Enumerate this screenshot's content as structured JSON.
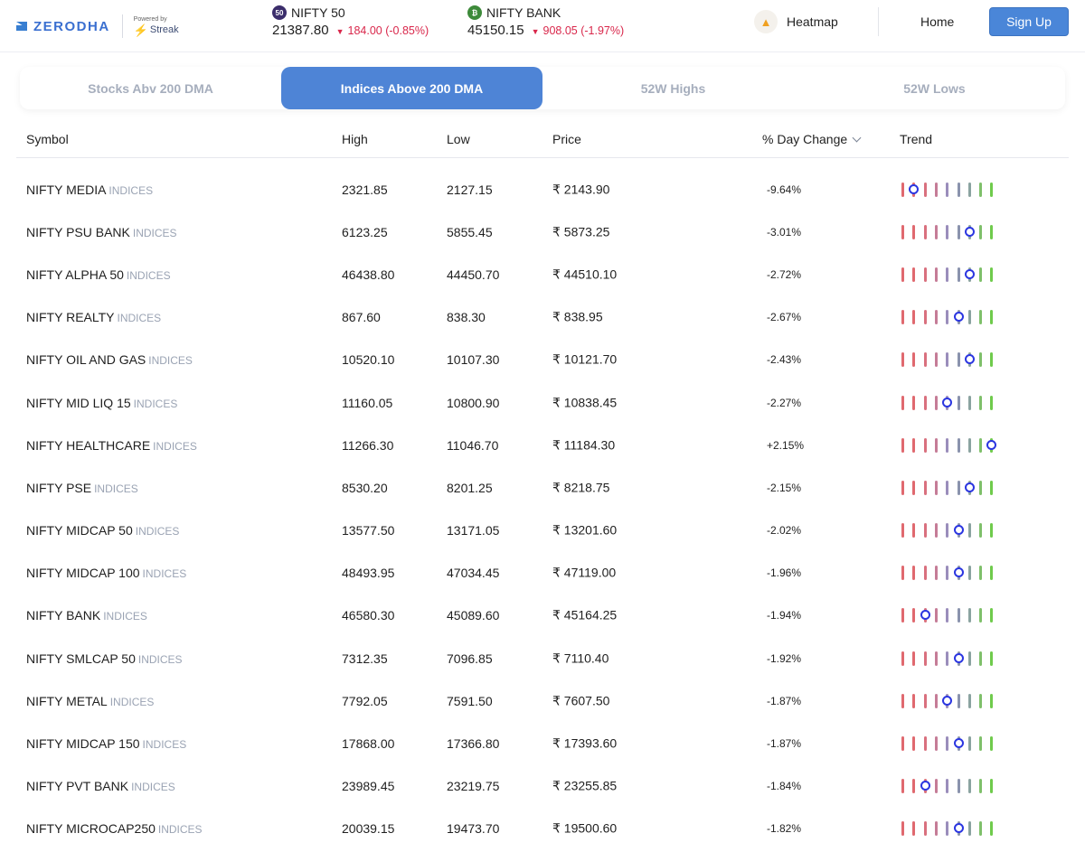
{
  "header": {
    "brand": "ZERODHA",
    "powered_by": "Powered by",
    "streak": "Streak",
    "tickers": [
      {
        "badge": "50",
        "name": "NIFTY 50",
        "value": "21387.80",
        "change": "184.00 (-0.85%)",
        "direction": "down",
        "badge_color": "#3b2d6b"
      },
      {
        "badge": "₿",
        "name": "NIFTY BANK",
        "value": "45150.15",
        "change": "908.05 (-1.97%)",
        "direction": "down",
        "badge_color": "#3d8a3a"
      }
    ],
    "heatmap": "Heatmap",
    "heatmap_icon": "flame-icon",
    "home": "Home",
    "signup": "Sign Up"
  },
  "tabs": [
    {
      "label": "Stocks Abv 200 DMA",
      "active": false
    },
    {
      "label": "Indices Above 200 DMA",
      "active": true
    },
    {
      "label": "52W Highs",
      "active": false
    },
    {
      "label": "52W Lows",
      "active": false
    }
  ],
  "table": {
    "columns": {
      "symbol": "Symbol",
      "high": "High",
      "low": "Low",
      "price": "Price",
      "change": "% Day Change",
      "trend": "Trend"
    },
    "rows": [
      {
        "symbol": "NIFTY MEDIA",
        "tag": "INDICES",
        "high": "2321.85",
        "low": "2127.15",
        "price": "₹ 2143.90",
        "change": "-9.64%",
        "trend_pos": 1
      },
      {
        "symbol": "NIFTY PSU BANK",
        "tag": "INDICES",
        "high": "6123.25",
        "low": "5855.45",
        "price": "₹ 5873.25",
        "change": "-3.01%",
        "trend_pos": 6
      },
      {
        "symbol": "NIFTY ALPHA 50",
        "tag": "INDICES",
        "high": "46438.80",
        "low": "44450.70",
        "price": "₹ 44510.10",
        "change": "-2.72%",
        "trend_pos": 6
      },
      {
        "symbol": "NIFTY REALTY",
        "tag": "INDICES",
        "high": "867.60",
        "low": "838.30",
        "price": "₹ 838.95",
        "change": "-2.67%",
        "trend_pos": 5
      },
      {
        "symbol": "NIFTY OIL AND GAS",
        "tag": "INDICES",
        "high": "10520.10",
        "low": "10107.30",
        "price": "₹ 10121.70",
        "change": "-2.43%",
        "trend_pos": 6
      },
      {
        "symbol": "NIFTY MID LIQ 15",
        "tag": "INDICES",
        "high": "11160.05",
        "low": "10800.90",
        "price": "₹ 10838.45",
        "change": "-2.27%",
        "trend_pos": 4
      },
      {
        "symbol": "NIFTY HEALTHCARE",
        "tag": "INDICES",
        "high": "11266.30",
        "low": "11046.70",
        "price": "₹ 11184.30",
        "change": "+2.15%",
        "trend_pos": 8
      },
      {
        "symbol": "NIFTY PSE",
        "tag": "INDICES",
        "high": "8530.20",
        "low": "8201.25",
        "price": "₹ 8218.75",
        "change": "-2.15%",
        "trend_pos": 6
      },
      {
        "symbol": "NIFTY MIDCAP 50",
        "tag": "INDICES",
        "high": "13577.50",
        "low": "13171.05",
        "price": "₹ 13201.60",
        "change": "-2.02%",
        "trend_pos": 5
      },
      {
        "symbol": "NIFTY MIDCAP 100",
        "tag": "INDICES",
        "high": "48493.95",
        "low": "47034.45",
        "price": "₹ 47119.00",
        "change": "-1.96%",
        "trend_pos": 5
      },
      {
        "symbol": "NIFTY BANK",
        "tag": "INDICES",
        "high": "46580.30",
        "low": "45089.60",
        "price": "₹ 45164.25",
        "change": "-1.94%",
        "trend_pos": 2
      },
      {
        "symbol": "NIFTY SMLCAP 50",
        "tag": "INDICES",
        "high": "7312.35",
        "low": "7096.85",
        "price": "₹ 7110.40",
        "change": "-1.92%",
        "trend_pos": 5
      },
      {
        "symbol": "NIFTY METAL",
        "tag": "INDICES",
        "high": "7792.05",
        "low": "7591.50",
        "price": "₹ 7607.50",
        "change": "-1.87%",
        "trend_pos": 4
      },
      {
        "symbol": "NIFTY MIDCAP 150",
        "tag": "INDICES",
        "high": "17868.00",
        "low": "17366.80",
        "price": "₹ 17393.60",
        "change": "-1.87%",
        "trend_pos": 5
      },
      {
        "symbol": "NIFTY PVT BANK",
        "tag": "INDICES",
        "high": "23989.45",
        "low": "23219.75",
        "price": "₹ 23255.85",
        "change": "-1.84%",
        "trend_pos": 2
      },
      {
        "symbol": "NIFTY MICROCAP250",
        "tag": "INDICES",
        "high": "20039.15",
        "low": "19473.70",
        "price": "₹ 19500.60",
        "change": "-1.82%",
        "trend_pos": 5
      }
    ],
    "trend_colors": [
      "#e0696f",
      "#e0696f",
      "#d9707e",
      "#c57c97",
      "#9a8dbb",
      "#8a93ad",
      "#8aa3a0",
      "#7fc06a",
      "#6fcb4c"
    ],
    "marker_color": "#2b36e0"
  }
}
